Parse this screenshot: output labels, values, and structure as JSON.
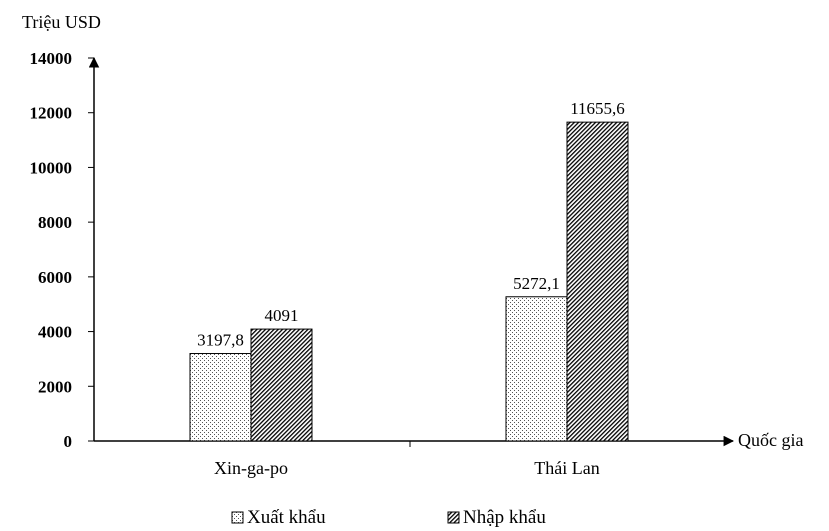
{
  "chart_data": {
    "type": "bar",
    "ylabel": "Triệu USD",
    "xlabel": "Quốc gia",
    "categories": [
      "Xin-ga-po",
      "Thái Lan"
    ],
    "ylim": [
      0,
      14000
    ],
    "yticks": [
      0,
      2000,
      4000,
      6000,
      8000,
      10000,
      12000,
      14000
    ],
    "grid": false,
    "legend_position": "bottom",
    "series": [
      {
        "name": "Xuất khẩu",
        "values": [
          3197.8,
          5272.1
        ],
        "value_labels": [
          "3197,8",
          "5272,1"
        ],
        "pattern": "dots"
      },
      {
        "name": "Nhập khẩu",
        "values": [
          4091,
          11655.6
        ],
        "value_labels": [
          "4091",
          "11655,6"
        ],
        "pattern": "diagonal-lines"
      }
    ]
  }
}
